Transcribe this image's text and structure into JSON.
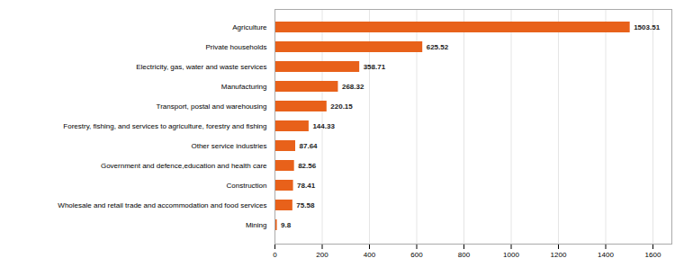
{
  "chart_data": {
    "type": "bar",
    "orientation": "horizontal",
    "categories": [
      "Agriculture",
      "Private households",
      "Electricity, gas, water and waste services",
      "Manufacturing",
      "Transport, postal and warehousing",
      "Forestry, fishing, and services to agriculture, forestry and fishing",
      "Other service industries",
      "Government and defence,education and health care",
      "Construction",
      "Wholesale and retail trade and accommodation and food services",
      "Mining"
    ],
    "values": [
      1503.51,
      625.52,
      358.71,
      268.32,
      220.15,
      144.33,
      87.64,
      82.56,
      78.41,
      75.58,
      9.8
    ],
    "color": "#E8611A",
    "xlim": [
      0,
      1680
    ],
    "xticks": [
      0,
      200,
      400,
      600,
      800,
      1000,
      1200,
      1400,
      1600
    ],
    "grid": true,
    "data_labels": true
  }
}
